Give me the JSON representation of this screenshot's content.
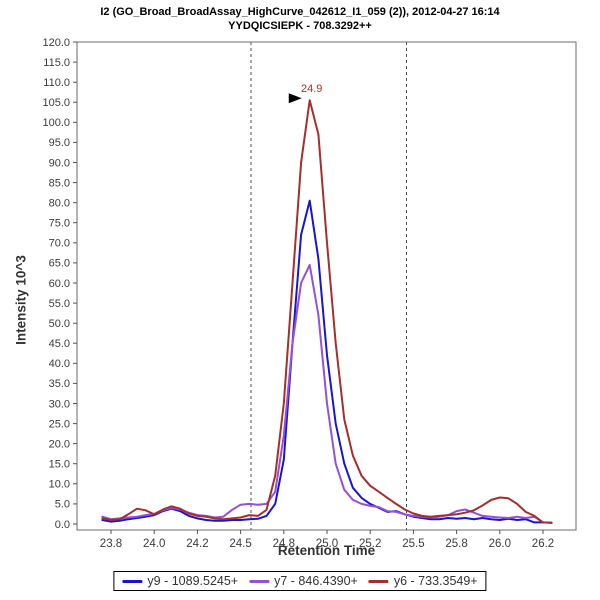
{
  "title": {
    "line1": "I2 (GO_Broad_BroadAssay_HighCurve_042612_I1_059 (2)), 2012-04-27 16:14",
    "line2": "YYDQICSIEPK - 708.3292++"
  },
  "axes": {
    "x_label": "Retention Time",
    "y_label": "Intensity 10^3"
  },
  "legend": {
    "items": [
      {
        "id": "y9",
        "label": "y9 - 1089.5245+",
        "color": "#1515D2"
      },
      {
        "id": "y7",
        "label": "y7 - 846.4390+",
        "color": "#9650D8"
      },
      {
        "id": "y6",
        "label": "y6 - 733.3549+",
        "color": "#A52F2B"
      }
    ]
  },
  "chart_data": {
    "type": "line",
    "title": "I2 (GO_Broad_BroadAssay_HighCurve_042612_I1_059 (2)), 2012-04-27 16:14",
    "subtitle": "YYDQICSIEPK - 708.3292++",
    "xlabel": "Retention Time",
    "ylabel": "Intensity 10^3",
    "grid": false,
    "legend_position": "bottom-center",
    "xlim": [
      23.553,
      26.441
    ],
    "ylim": [
      -1.5,
      120
    ],
    "x_ticks": {
      "values": [
        23.75,
        24.0,
        24.25,
        24.5,
        24.75,
        25.0,
        25.25,
        25.5,
        25.75,
        26.0,
        26.25
      ],
      "labels": [
        "23.8",
        "24.0",
        "24.2",
        "24.5",
        "24.8",
        "25.0",
        "25.2",
        "25.5",
        "25.8",
        "26.0",
        "26.2"
      ]
    },
    "y_ticks": {
      "values": [
        0,
        5,
        10,
        15,
        20,
        25,
        30,
        35,
        40,
        45,
        50,
        55,
        60,
        65,
        70,
        75,
        80,
        85,
        90,
        95,
        100,
        105,
        110,
        115,
        120
      ],
      "labels": [
        "0.0",
        "5.0",
        "10.0",
        "15.0",
        "20.0",
        "25.0",
        "30.0",
        "35.0",
        "40.0",
        "45.0",
        "50.0",
        "55.0",
        "60.0",
        "65.0",
        "70.0",
        "75.0",
        "80.0",
        "85.0",
        "90.0",
        "95.0",
        "100.0",
        "105.0",
        "110.0",
        "115.0",
        "120.0"
      ]
    },
    "peak_boundaries": [
      24.56,
      25.46
    ],
    "annotation": {
      "text": "24.9",
      "x": 24.9,
      "y": 105.5,
      "color": "#A52F2B"
    },
    "x": [
      23.7,
      23.75,
      23.8,
      23.85,
      23.9,
      23.95,
      24.0,
      24.05,
      24.1,
      24.15,
      24.2,
      24.25,
      24.3,
      24.35,
      24.4,
      24.45,
      24.5,
      24.55,
      24.6,
      24.65,
      24.7,
      24.75,
      24.8,
      24.85,
      24.9,
      24.95,
      25.0,
      25.05,
      25.1,
      25.15,
      25.2,
      25.25,
      25.3,
      25.35,
      25.4,
      25.45,
      25.5,
      25.55,
      25.6,
      25.65,
      25.7,
      25.75,
      25.8,
      25.85,
      25.9,
      25.95,
      26.0,
      26.05,
      26.1,
      26.15,
      26.2,
      26.25,
      26.3
    ],
    "series": [
      {
        "name": "y9 - 1089.5245+",
        "color": "#1515D2",
        "values": [
          1.0,
          0.6,
          0.8,
          1.2,
          1.5,
          1.8,
          2.2,
          3.2,
          3.8,
          3.2,
          2.0,
          1.4,
          1.0,
          0.8,
          0.8,
          1.0,
          1.0,
          1.2,
          1.3,
          2.0,
          5.0,
          16.0,
          45.0,
          72.0,
          80.5,
          66.0,
          42.0,
          25.0,
          15.0,
          9.0,
          6.5,
          5.0,
          4.0,
          3.0,
          3.2,
          2.4,
          1.8,
          1.5,
          1.2,
          1.2,
          1.5,
          1.3,
          1.5,
          1.2,
          1.5,
          1.2,
          1.0,
          1.3,
          1.0,
          1.2,
          0.4,
          0.4,
          0.3
        ]
      },
      {
        "name": "y7 - 846.4390+",
        "color": "#9650D8",
        "values": [
          1.8,
          1.2,
          1.4,
          1.6,
          1.8,
          2.2,
          2.5,
          3.4,
          4.0,
          3.6,
          2.8,
          2.2,
          2.0,
          1.6,
          1.8,
          3.5,
          4.8,
          5.0,
          4.8,
          5.0,
          8.0,
          22.0,
          45.0,
          60.0,
          64.5,
          52.0,
          30.0,
          15.0,
          8.5,
          6.0,
          5.0,
          4.5,
          4.2,
          3.2,
          3.0,
          2.4,
          2.0,
          1.8,
          1.6,
          1.8,
          2.2,
          3.2,
          3.6,
          2.8,
          2.0,
          1.8,
          1.6,
          1.5,
          1.8,
          1.5,
          1.8,
          0.4,
          0.3
        ]
      },
      {
        "name": "y6 - 733.3549+",
        "color": "#A52F2B",
        "values": [
          1.4,
          1.0,
          1.2,
          2.4,
          3.8,
          3.4,
          2.4,
          3.6,
          4.4,
          3.8,
          2.6,
          2.0,
          1.8,
          1.4,
          1.2,
          1.4,
          1.6,
          2.2,
          2.0,
          3.5,
          12.0,
          30.0,
          60.0,
          90.0,
          105.5,
          97.0,
          70.0,
          45.0,
          26.0,
          17.0,
          12.0,
          9.5,
          8.0,
          6.5,
          5.0,
          3.6,
          2.6,
          2.0,
          1.8,
          2.0,
          2.2,
          2.4,
          2.8,
          3.4,
          4.6,
          6.0,
          6.6,
          6.4,
          5.0,
          3.0,
          2.0,
          0.4,
          0.3
        ]
      }
    ]
  }
}
